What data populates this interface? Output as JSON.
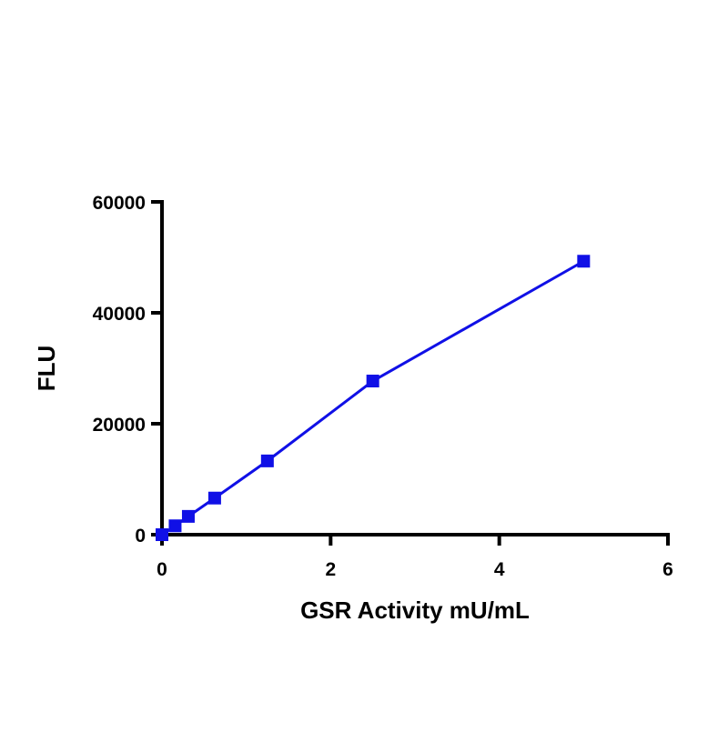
{
  "chart_data": {
    "type": "line",
    "x_label": "GSR Activity mU/mL",
    "y_label": "FLU",
    "x": [
      0,
      0.156,
      0.3125,
      0.625,
      1.25,
      2.5,
      5
    ],
    "series": [
      {
        "name": "FLU",
        "color": "#1010e6",
        "values": [
          0,
          1600,
          3300,
          6600,
          13300,
          27700,
          49300
        ]
      }
    ],
    "xlim": [
      0,
      6
    ],
    "xticks": [
      0,
      2,
      4,
      6
    ],
    "ylim": [
      0,
      60000
    ],
    "yticks": [
      0,
      20000,
      40000,
      60000
    ],
    "grid": false
  }
}
